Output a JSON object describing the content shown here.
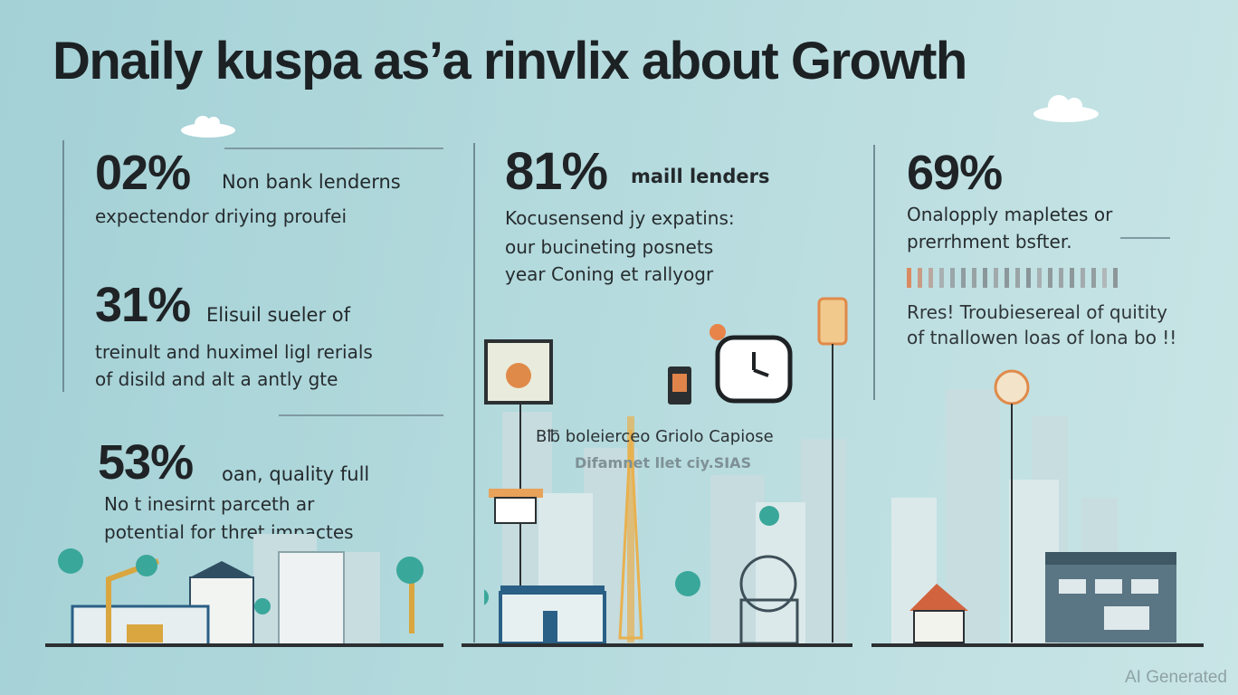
{
  "title": "Dnaily kuspa as’a rinvlix about Growth",
  "columns": [
    {
      "stats": [
        {
          "value": "02%",
          "label": "Non bank lenderns",
          "desc": [
            "expectendor driying proufei"
          ]
        },
        {
          "value": "31%",
          "label": "Elisuil sueler of",
          "desc": [
            "treinult and huximel ligl rerials",
            "of disild and alt a antly gte"
          ]
        },
        {
          "value": "53%",
          "label": "oan, quality full",
          "desc": [
            "No t inesirnt parceth ar",
            "potential for thret impactes"
          ]
        }
      ]
    },
    {
      "stats": [
        {
          "value": "81%",
          "label": "maill lenders",
          "desc": [
            "Kocusensend jy expatins:",
            "our bucineting posnets",
            "year Coning et rallyogr"
          ]
        }
      ],
      "city_caption": "B℔ boleierceo Griolo Capiose",
      "city_subcaption": "Difamnet llet ciy.SIAS"
    },
    {
      "stats": [
        {
          "value": "69%",
          "label": "",
          "desc": [
            "Onalopply mapletes or",
            "prerrhment bsfter."
          ]
        }
      ],
      "bar_colors": [
        "#d98a62",
        "#c99b84",
        "#b9a8a0",
        "#a9b0b2",
        "#9aa6aa",
        "#8f9ca0",
        "#98a3a6",
        "#8a969a",
        "#a0aaac",
        "#8c979b",
        "#9aa4a7",
        "#8a9599",
        "#a6afb1",
        "#8f9a9d",
        "#9ba5a8",
        "#8d989b",
        "#a2abad",
        "#939ea1",
        "#b0b8ba",
        "#8c979a"
      ],
      "footnote": [
        "Rres! Troubiesereal of quitity",
        "of tnallowen loas of lona bo !!"
      ]
    }
  ],
  "watermark": "AI Generated",
  "colors": {
    "background": "#b4dadd",
    "text": "#1f2326",
    "accent": "#e8a25a"
  }
}
